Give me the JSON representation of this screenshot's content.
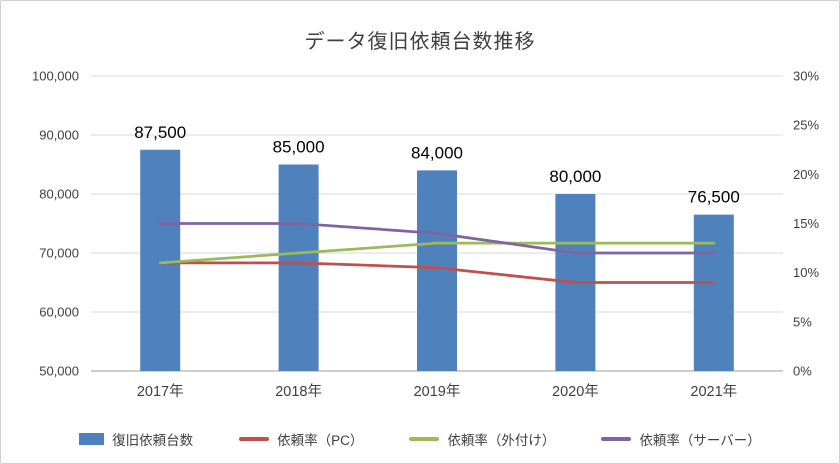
{
  "title": "データ復旧依頼台数推移",
  "chart_data": {
    "type": "combo-bar-line",
    "categories": [
      "2017年",
      "2018年",
      "2019年",
      "2020年",
      "2021年"
    ],
    "bar_series": {
      "name": "復旧依頼台数",
      "color": "#4F81BD",
      "values": [
        87500,
        85000,
        84000,
        80000,
        76500
      ],
      "data_labels": [
        "87,500",
        "85,000",
        "84,000",
        "80,000",
        "76,500"
      ]
    },
    "line_series": [
      {
        "name": "依頼率（PC）",
        "color": "#C0504D",
        "values": [
          11,
          11,
          10.5,
          9,
          9
        ]
      },
      {
        "name": "依頼率（外付け）",
        "color": "#9BBB59",
        "values": [
          11,
          12,
          13,
          13,
          13
        ]
      },
      {
        "name": "依頼率（サーバー）",
        "color": "#8064A2",
        "values": [
          15,
          15,
          14,
          12,
          12
        ]
      }
    ],
    "left_axis": {
      "ticks": [
        "100,000",
        "90,000",
        "80,000",
        "70,000",
        "60,000",
        "50,000"
      ],
      "min": 50000,
      "max": 100000
    },
    "right_axis": {
      "ticks": [
        "30%",
        "25%",
        "20%",
        "15%",
        "10%",
        "5%",
        "0%"
      ],
      "min": 0,
      "max": 30,
      "unit": "%"
    },
    "grid": true,
    "legend_position": "bottom"
  }
}
